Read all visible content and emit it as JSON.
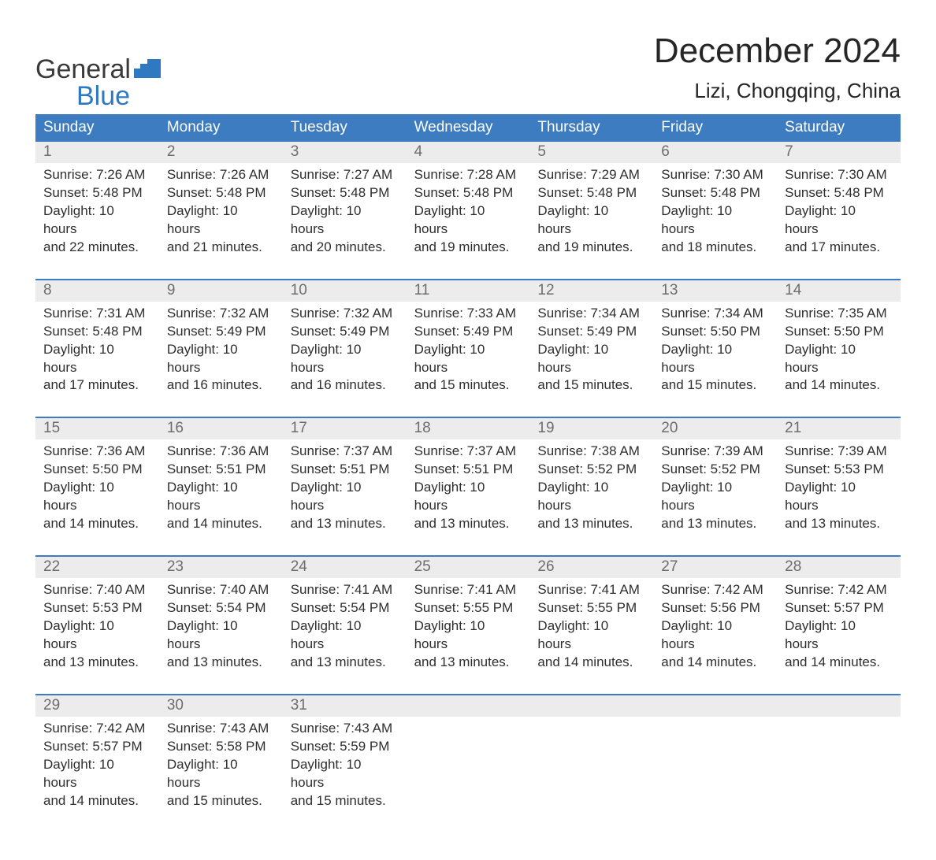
{
  "brand": {
    "word1": "General",
    "word2": "Blue"
  },
  "colors": {
    "brand_blue": "#2f78c2",
    "header_blue": "#3d7cc0",
    "light_gray": "#ececec",
    "text": "#2e2e2e",
    "daynum_text": "#6d6d6d",
    "white": "#ffffff"
  },
  "title": "December 2024",
  "location": "Lizi, Chongqing, China",
  "days_of_week": [
    "Sunday",
    "Monday",
    "Tuesday",
    "Wednesday",
    "Thursday",
    "Friday",
    "Saturday"
  ],
  "weeks": [
    {
      "nums": [
        "1",
        "2",
        "3",
        "4",
        "5",
        "6",
        "7"
      ],
      "cells": [
        {
          "sunrise": "Sunrise: 7:26 AM",
          "sunset": "Sunset: 5:48 PM",
          "d1": "Daylight: 10 hours",
          "d2": "and 22 minutes."
        },
        {
          "sunrise": "Sunrise: 7:26 AM",
          "sunset": "Sunset: 5:48 PM",
          "d1": "Daylight: 10 hours",
          "d2": "and 21 minutes."
        },
        {
          "sunrise": "Sunrise: 7:27 AM",
          "sunset": "Sunset: 5:48 PM",
          "d1": "Daylight: 10 hours",
          "d2": "and 20 minutes."
        },
        {
          "sunrise": "Sunrise: 7:28 AM",
          "sunset": "Sunset: 5:48 PM",
          "d1": "Daylight: 10 hours",
          "d2": "and 19 minutes."
        },
        {
          "sunrise": "Sunrise: 7:29 AM",
          "sunset": "Sunset: 5:48 PM",
          "d1": "Daylight: 10 hours",
          "d2": "and 19 minutes."
        },
        {
          "sunrise": "Sunrise: 7:30 AM",
          "sunset": "Sunset: 5:48 PM",
          "d1": "Daylight: 10 hours",
          "d2": "and 18 minutes."
        },
        {
          "sunrise": "Sunrise: 7:30 AM",
          "sunset": "Sunset: 5:48 PM",
          "d1": "Daylight: 10 hours",
          "d2": "and 17 minutes."
        }
      ]
    },
    {
      "nums": [
        "8",
        "9",
        "10",
        "11",
        "12",
        "13",
        "14"
      ],
      "cells": [
        {
          "sunrise": "Sunrise: 7:31 AM",
          "sunset": "Sunset: 5:48 PM",
          "d1": "Daylight: 10 hours",
          "d2": "and 17 minutes."
        },
        {
          "sunrise": "Sunrise: 7:32 AM",
          "sunset": "Sunset: 5:49 PM",
          "d1": "Daylight: 10 hours",
          "d2": "and 16 minutes."
        },
        {
          "sunrise": "Sunrise: 7:32 AM",
          "sunset": "Sunset: 5:49 PM",
          "d1": "Daylight: 10 hours",
          "d2": "and 16 minutes."
        },
        {
          "sunrise": "Sunrise: 7:33 AM",
          "sunset": "Sunset: 5:49 PM",
          "d1": "Daylight: 10 hours",
          "d2": "and 15 minutes."
        },
        {
          "sunrise": "Sunrise: 7:34 AM",
          "sunset": "Sunset: 5:49 PM",
          "d1": "Daylight: 10 hours",
          "d2": "and 15 minutes."
        },
        {
          "sunrise": "Sunrise: 7:34 AM",
          "sunset": "Sunset: 5:50 PM",
          "d1": "Daylight: 10 hours",
          "d2": "and 15 minutes."
        },
        {
          "sunrise": "Sunrise: 7:35 AM",
          "sunset": "Sunset: 5:50 PM",
          "d1": "Daylight: 10 hours",
          "d2": "and 14 minutes."
        }
      ]
    },
    {
      "nums": [
        "15",
        "16",
        "17",
        "18",
        "19",
        "20",
        "21"
      ],
      "cells": [
        {
          "sunrise": "Sunrise: 7:36 AM",
          "sunset": "Sunset: 5:50 PM",
          "d1": "Daylight: 10 hours",
          "d2": "and 14 minutes."
        },
        {
          "sunrise": "Sunrise: 7:36 AM",
          "sunset": "Sunset: 5:51 PM",
          "d1": "Daylight: 10 hours",
          "d2": "and 14 minutes."
        },
        {
          "sunrise": "Sunrise: 7:37 AM",
          "sunset": "Sunset: 5:51 PM",
          "d1": "Daylight: 10 hours",
          "d2": "and 13 minutes."
        },
        {
          "sunrise": "Sunrise: 7:37 AM",
          "sunset": "Sunset: 5:51 PM",
          "d1": "Daylight: 10 hours",
          "d2": "and 13 minutes."
        },
        {
          "sunrise": "Sunrise: 7:38 AM",
          "sunset": "Sunset: 5:52 PM",
          "d1": "Daylight: 10 hours",
          "d2": "and 13 minutes."
        },
        {
          "sunrise": "Sunrise: 7:39 AM",
          "sunset": "Sunset: 5:52 PM",
          "d1": "Daylight: 10 hours",
          "d2": "and 13 minutes."
        },
        {
          "sunrise": "Sunrise: 7:39 AM",
          "sunset": "Sunset: 5:53 PM",
          "d1": "Daylight: 10 hours",
          "d2": "and 13 minutes."
        }
      ]
    },
    {
      "nums": [
        "22",
        "23",
        "24",
        "25",
        "26",
        "27",
        "28"
      ],
      "cells": [
        {
          "sunrise": "Sunrise: 7:40 AM",
          "sunset": "Sunset: 5:53 PM",
          "d1": "Daylight: 10 hours",
          "d2": "and 13 minutes."
        },
        {
          "sunrise": "Sunrise: 7:40 AM",
          "sunset": "Sunset: 5:54 PM",
          "d1": "Daylight: 10 hours",
          "d2": "and 13 minutes."
        },
        {
          "sunrise": "Sunrise: 7:41 AM",
          "sunset": "Sunset: 5:54 PM",
          "d1": "Daylight: 10 hours",
          "d2": "and 13 minutes."
        },
        {
          "sunrise": "Sunrise: 7:41 AM",
          "sunset": "Sunset: 5:55 PM",
          "d1": "Daylight: 10 hours",
          "d2": "and 13 minutes."
        },
        {
          "sunrise": "Sunrise: 7:41 AM",
          "sunset": "Sunset: 5:55 PM",
          "d1": "Daylight: 10 hours",
          "d2": "and 14 minutes."
        },
        {
          "sunrise": "Sunrise: 7:42 AM",
          "sunset": "Sunset: 5:56 PM",
          "d1": "Daylight: 10 hours",
          "d2": "and 14 minutes."
        },
        {
          "sunrise": "Sunrise: 7:42 AM",
          "sunset": "Sunset: 5:57 PM",
          "d1": "Daylight: 10 hours",
          "d2": "and 14 minutes."
        }
      ]
    },
    {
      "nums": [
        "29",
        "30",
        "31",
        "",
        "",
        "",
        ""
      ],
      "cells": [
        {
          "sunrise": "Sunrise: 7:42 AM",
          "sunset": "Sunset: 5:57 PM",
          "d1": "Daylight: 10 hours",
          "d2": "and 14 minutes."
        },
        {
          "sunrise": "Sunrise: 7:43 AM",
          "sunset": "Sunset: 5:58 PM",
          "d1": "Daylight: 10 hours",
          "d2": "and 15 minutes."
        },
        {
          "sunrise": "Sunrise: 7:43 AM",
          "sunset": "Sunset: 5:59 PM",
          "d1": "Daylight: 10 hours",
          "d2": "and 15 minutes."
        },
        {
          "sunrise": "",
          "sunset": "",
          "d1": "",
          "d2": ""
        },
        {
          "sunrise": "",
          "sunset": "",
          "d1": "",
          "d2": ""
        },
        {
          "sunrise": "",
          "sunset": "",
          "d1": "",
          "d2": ""
        },
        {
          "sunrise": "",
          "sunset": "",
          "d1": "",
          "d2": ""
        }
      ]
    }
  ]
}
